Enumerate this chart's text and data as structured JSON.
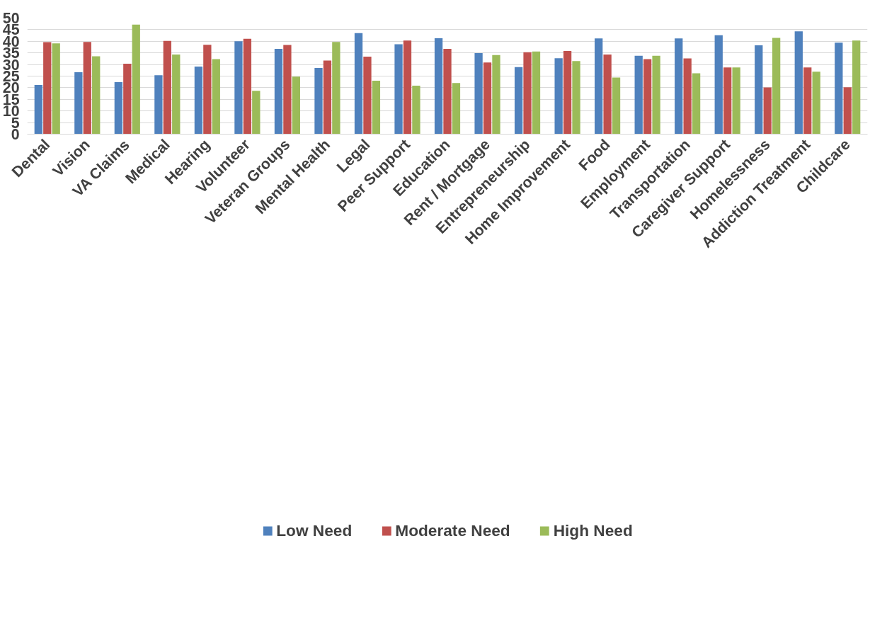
{
  "chart_data": {
    "type": "bar",
    "categories": [
      "Dental",
      "Vision",
      "VA Claims",
      "Medical",
      "Hearing",
      "Volunteer",
      "Veteran Groups",
      "Mental Health",
      "Legal",
      "Peer Support",
      "Education",
      "Rent / Mortgage",
      "Entrepreneurship",
      "Home Improvement",
      "Food",
      "Employment",
      "Transportation",
      "Caregiver Support",
      "Homelessness",
      "Addiction Treatment",
      "Childcare"
    ],
    "series": [
      {
        "name": "Low Need",
        "color": "#4f81bd",
        "values": [
          21.2,
          26.7,
          22.4,
          25.4,
          29.1,
          40.0,
          36.7,
          28.5,
          43.5,
          38.7,
          41.3,
          34.9,
          28.9,
          32.7,
          41.2,
          33.8,
          41.2,
          42.6,
          38.3,
          44.3,
          39.4
        ]
      },
      {
        "name": "Moderate Need",
        "color": "#c0504d",
        "values": [
          39.6,
          39.7,
          30.3,
          40.2,
          38.5,
          41.1,
          38.4,
          31.7,
          33.4,
          40.3,
          36.7,
          30.9,
          35.3,
          35.8,
          34.3,
          32.3,
          32.6,
          28.7,
          20.1,
          28.7,
          20.2
        ]
      },
      {
        "name": "High Need",
        "color": "#9bbb59",
        "values": [
          39.1,
          33.5,
          47.2,
          34.3,
          32.3,
          18.7,
          24.8,
          39.7,
          23.0,
          20.9,
          22.0,
          34.1,
          35.6,
          31.5,
          24.4,
          33.8,
          26.2,
          28.7,
          41.5,
          26.9,
          40.3
        ]
      }
    ],
    "ylim": [
      0,
      50
    ],
    "yticks": [
      0,
      5,
      10,
      15,
      20,
      25,
      30,
      35,
      40,
      45,
      50
    ],
    "grid": "y",
    "legend": "bottom"
  }
}
